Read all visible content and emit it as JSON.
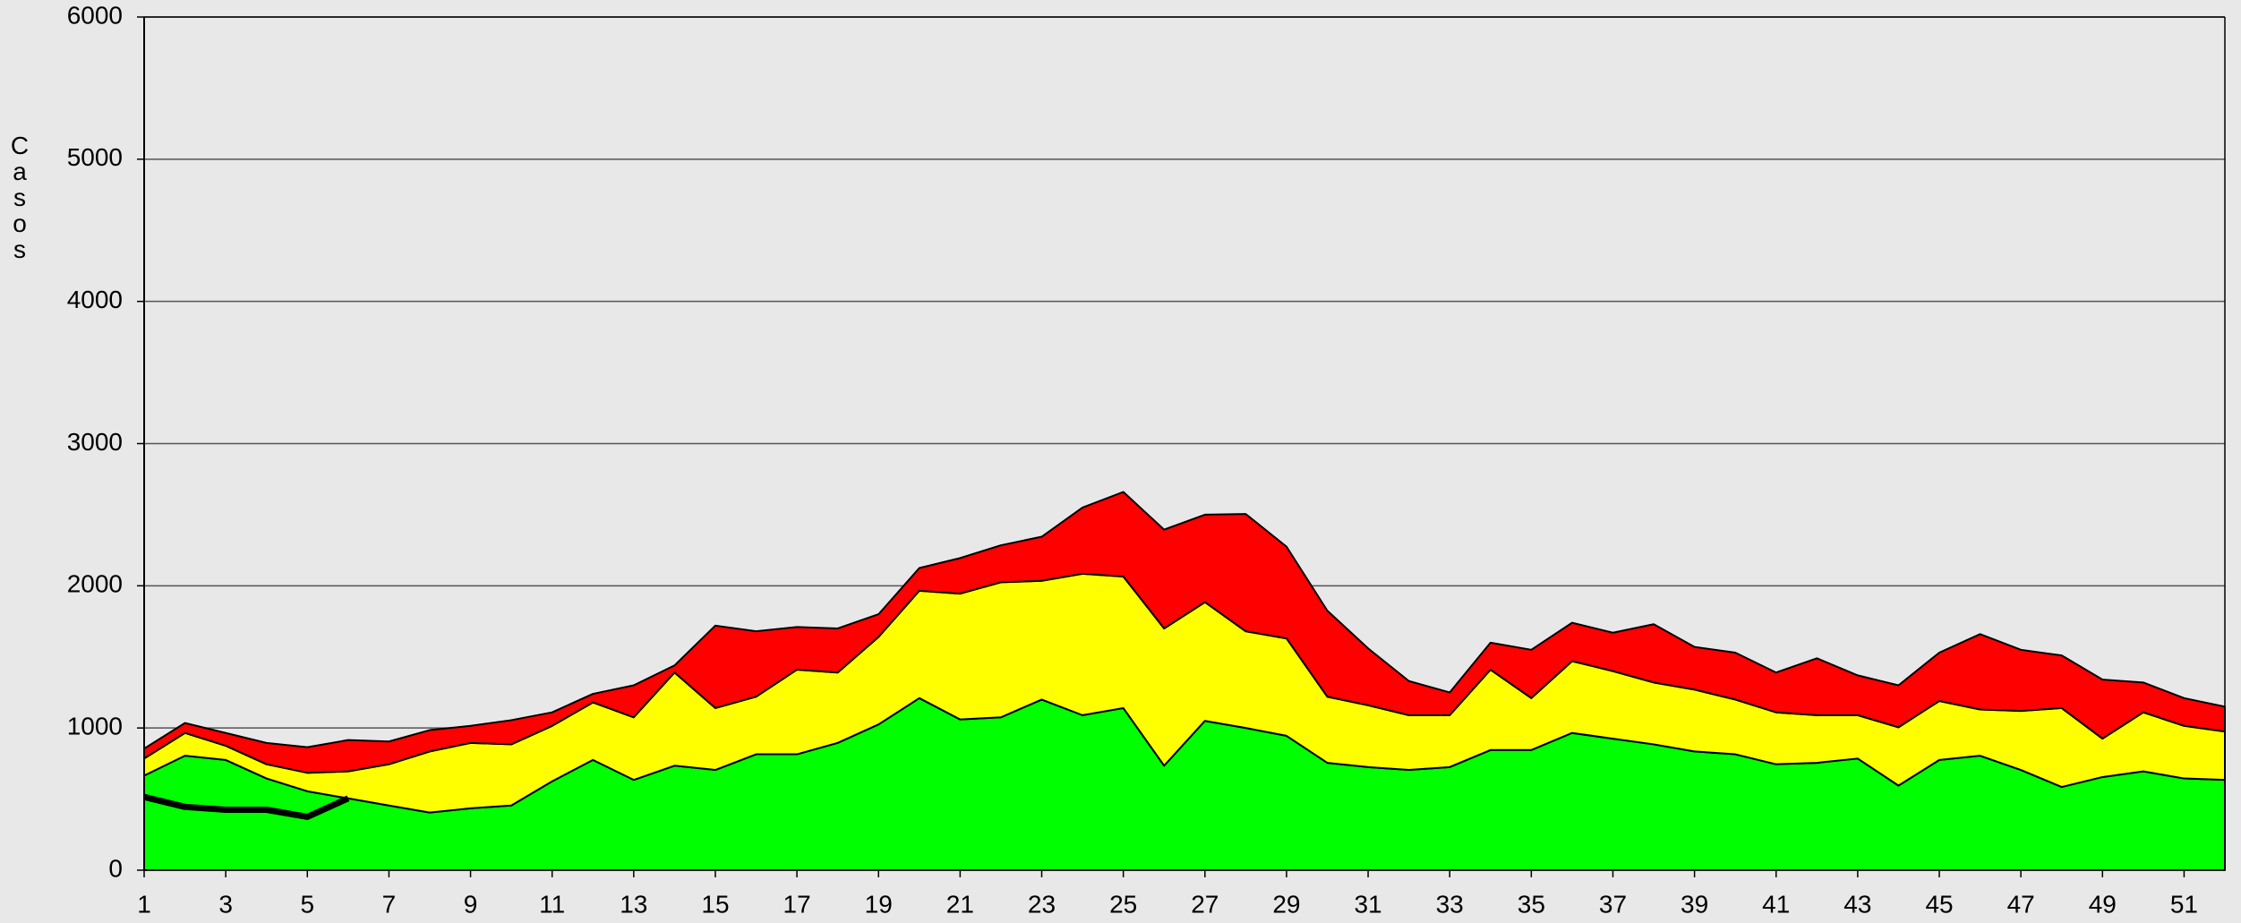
{
  "chart_data": {
    "type": "stacked_area",
    "y_label": "Casos",
    "x": [
      1,
      2,
      3,
      4,
      5,
      6,
      7,
      8,
      9,
      10,
      11,
      12,
      13,
      14,
      15,
      16,
      17,
      18,
      19,
      20,
      21,
      22,
      23,
      24,
      25,
      26,
      27,
      28,
      29,
      30,
      31,
      32,
      33,
      34,
      35,
      36,
      37,
      38,
      39,
      40,
      41,
      42,
      43,
      44,
      45,
      46,
      47,
      48,
      49,
      50,
      51,
      52
    ],
    "xlim": [
      1,
      52
    ],
    "xticks": [
      1,
      3,
      5,
      7,
      9,
      11,
      13,
      15,
      17,
      19,
      21,
      23,
      25,
      27,
      29,
      31,
      33,
      35,
      37,
      39,
      41,
      43,
      45,
      47,
      49,
      51
    ],
    "ylim": [
      0,
      6000
    ],
    "yticks": [
      0,
      1000,
      2000,
      3000,
      4000,
      5000,
      6000
    ],
    "grid": true,
    "series": [
      {
        "color": "#00ff00",
        "values": [
          665,
          805,
          775,
          645,
          555,
          505,
          455,
          405,
          435,
          455,
          625,
          775,
          635,
          735,
          705,
          815,
          815,
          895,
          1025,
          1210,
          1060,
          1075,
          1200,
          1090,
          1140,
          735,
          1050,
          1000,
          945,
          755,
          725,
          705,
          725,
          845,
          845,
          965,
          925,
          885,
          835,
          815,
          745,
          755,
          785,
          595,
          775,
          805,
          705,
          585,
          655,
          695,
          645,
          635
        ]
      },
      {
        "color": "#ffff00",
        "values": [
          120,
          160,
          100,
          100,
          130,
          190,
          290,
          430,
          460,
          430,
          390,
          405,
          440,
          655,
          435,
          405,
          595,
          495,
          615,
          755,
          885,
          950,
          835,
          995,
          925,
          965,
          835,
          680,
          685,
          465,
          435,
          385,
          365,
          565,
          365,
          505,
          475,
          435,
          435,
          385,
          365,
          335,
          305,
          410,
          415,
          325,
          415,
          555,
          270,
          415,
          370,
          340
        ]
      },
      {
        "color": "#ff0000",
        "values": [
          70,
          70,
          90,
          150,
          180,
          220,
          160,
          150,
          120,
          170,
          95,
          60,
          225,
          50,
          580,
          460,
          300,
          310,
          160,
          160,
          250,
          260,
          310,
          465,
          595,
          695,
          615,
          825,
          645,
          605,
          400,
          240,
          160,
          190,
          340,
          270,
          270,
          410,
          300,
          330,
          280,
          400,
          280,
          295,
          340,
          530,
          430,
          370,
          415,
          210,
          195,
          175
        ]
      }
    ],
    "line_series": [
      {
        "color": "#000000",
        "values": [
          515,
          445,
          425,
          425,
          375,
          505,
          null,
          null,
          null,
          null,
          null,
          null,
          null,
          null,
          null,
          null,
          null,
          null,
          null,
          null,
          null,
          null,
          null,
          null,
          null,
          null,
          null,
          null,
          null,
          null,
          null,
          null,
          null,
          null,
          null,
          null,
          null,
          null,
          null,
          null,
          null,
          null,
          null,
          null,
          null,
          null,
          null,
          null,
          null,
          null,
          null,
          null
        ]
      }
    ]
  }
}
